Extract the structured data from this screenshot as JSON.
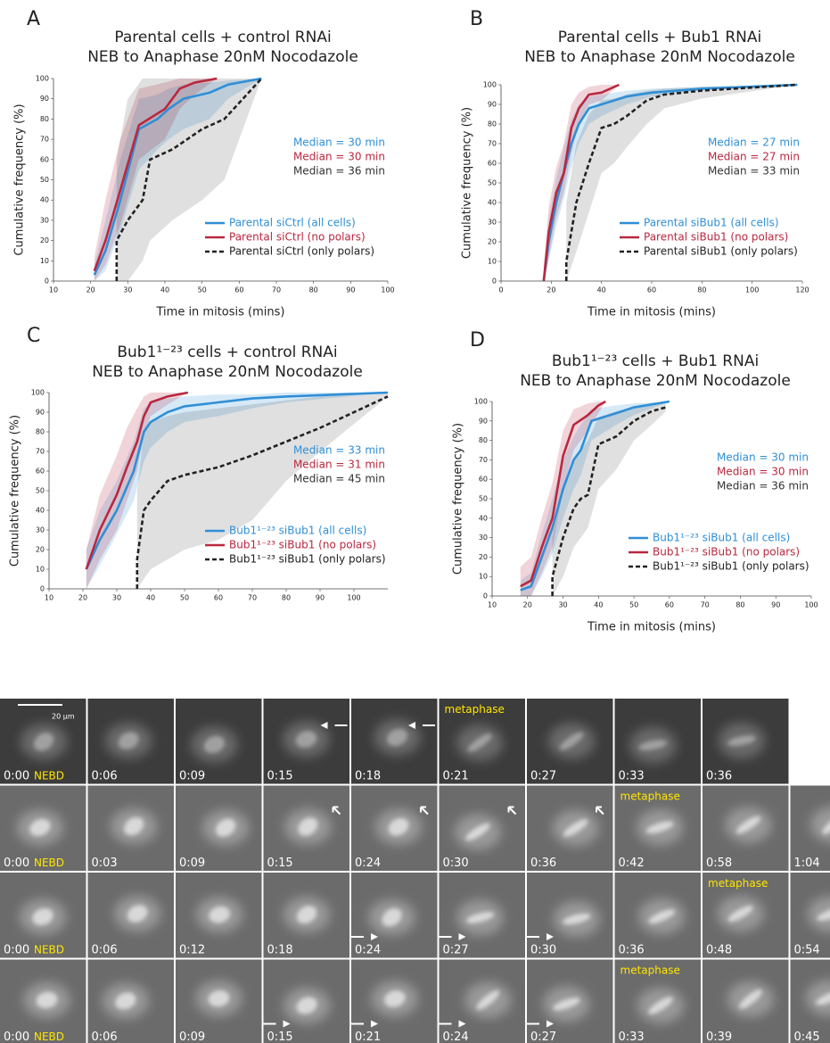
{
  "chart_data": [
    {
      "type": "line",
      "panel_label": "A",
      "title": "Parental cells + control RNAi",
      "subtitle": "NEB to Anaphase 20nM Nocodazole",
      "x_label": "Time in mitosis (mins)",
      "y_label": "Cumulative frequency (%)",
      "xlim": [
        10,
        100
      ],
      "xticks": [
        10,
        20,
        30,
        40,
        50,
        60,
        70,
        80,
        90,
        100
      ],
      "ylim": [
        0,
        100
      ],
      "yticks": [
        0,
        10,
        20,
        30,
        40,
        50,
        60,
        70,
        80,
        90,
        100
      ],
      "legend": "lower right",
      "annotations": [
        {
          "text": "Median = 30 min",
          "color": "#2f8fd6"
        },
        {
          "text": "Median = 30 min",
          "color": "#b8283f"
        },
        {
          "text": "Median = 36 min",
          "color": "#333333"
        }
      ],
      "series": [
        {
          "name": "Parental siCtrl (all cells)",
          "color": "#2f8fd6",
          "dashed": false,
          "x": [
            21,
            24,
            28,
            33,
            38,
            41,
            45,
            52,
            57,
            66
          ],
          "values": [
            3,
            15,
            40,
            75,
            80,
            85,
            90,
            93,
            97,
            100
          ],
          "lower": [
            0,
            5,
            25,
            55,
            65,
            70,
            75,
            80,
            90,
            100
          ],
          "upper": [
            8,
            30,
            60,
            90,
            92,
            95,
            97,
            98,
            99,
            100
          ]
        },
        {
          "name": "Parental siCtrl (no polars)",
          "color": "#b8283f",
          "dashed": false,
          "x": [
            21,
            24,
            28,
            33,
            40,
            44,
            48,
            54
          ],
          "values": [
            5,
            20,
            45,
            77,
            85,
            95,
            98,
            100
          ],
          "lower": [
            0,
            8,
            28,
            60,
            70,
            85,
            92,
            100
          ],
          "upper": [
            12,
            40,
            70,
            95,
            98,
            100,
            100,
            100
          ]
        },
        {
          "name": "Parental siCtrl (only polars)",
          "color": "#222222",
          "dashed": true,
          "x": [
            27,
            27,
            30,
            34,
            36,
            42,
            50,
            56,
            66
          ],
          "values": [
            0,
            20,
            30,
            40,
            60,
            65,
            75,
            80,
            100
          ],
          "lower": [
            0,
            0,
            0,
            10,
            20,
            30,
            40,
            50,
            100
          ],
          "upper": [
            0,
            60,
            90,
            100,
            100,
            100,
            100,
            100,
            100
          ]
        }
      ]
    },
    {
      "type": "line",
      "panel_label": "B",
      "title": "Parental cells + Bub1 RNAi",
      "subtitle": "NEB to Anaphase 20nM Nocodazole",
      "x_label": "Time in mitosis (mins)",
      "y_label": "Cumulative frequency (%)",
      "xlim": [
        0,
        120
      ],
      "xticks": [
        0,
        20,
        40,
        60,
        80,
        100,
        120
      ],
      "ylim": [
        0,
        100
      ],
      "yticks": [
        0,
        10,
        20,
        30,
        40,
        50,
        60,
        70,
        80,
        90,
        100
      ],
      "legend": "lower right",
      "annotations": [
        {
          "text": "Median = 27 min",
          "color": "#2f8fd6"
        },
        {
          "text": "Median = 27 min",
          "color": "#b8283f"
        },
        {
          "text": "Median = 33 min",
          "color": "#333333"
        }
      ],
      "series": [
        {
          "name": "Parental siBub1 (all cells)",
          "color": "#2f8fd6",
          "dashed": false,
          "x": [
            17,
            19,
            22,
            25,
            28,
            31,
            35,
            40,
            50,
            60,
            80,
            118
          ],
          "values": [
            0,
            20,
            40,
            55,
            70,
            80,
            88,
            90,
            94,
            96,
            98,
            100
          ],
          "lower": [
            0,
            10,
            28,
            42,
            58,
            70,
            80,
            84,
            90,
            94,
            97,
            100
          ],
          "upper": [
            5,
            32,
            52,
            68,
            82,
            90,
            94,
            95,
            97,
            98,
            99,
            100
          ]
        },
        {
          "name": "Parental siBub1 (no polars)",
          "color": "#b8283f",
          "dashed": false,
          "x": [
            17,
            19,
            22,
            25,
            28,
            31,
            35,
            40,
            47
          ],
          "values": [
            0,
            25,
            45,
            55,
            78,
            88,
            95,
            96,
            100
          ],
          "lower": [
            0,
            12,
            32,
            45,
            65,
            80,
            90,
            92,
            100
          ],
          "upper": [
            8,
            38,
            58,
            70,
            90,
            96,
            99,
            100,
            100
          ]
        },
        {
          "name": "Parental siBub1 (only polars)",
          "color": "#222222",
          "dashed": true,
          "x": [
            26,
            26,
            30,
            35,
            40,
            45,
            50,
            58,
            65,
            80,
            118
          ],
          "values": [
            0,
            10,
            40,
            60,
            78,
            80,
            84,
            92,
            95,
            97,
            100
          ],
          "lower": [
            0,
            0,
            15,
            35,
            55,
            60,
            68,
            80,
            88,
            93,
            100
          ],
          "upper": [
            0,
            40,
            70,
            85,
            92,
            93,
            95,
            97,
            98,
            99,
            100
          ]
        }
      ]
    },
    {
      "type": "line",
      "panel_label": "C",
      "title": "Bub1¹⁻²³ cells + control RNAi",
      "subtitle": "NEB to Anaphase 20nM Nocodazole",
      "y_label": "Cumulative frequency (%)",
      "xlim": [
        10,
        110
      ],
      "xticks": [
        10,
        20,
        30,
        40,
        50,
        60,
        70,
        80,
        90,
        100
      ],
      "ylim": [
        0,
        100
      ],
      "yticks": [
        0,
        10,
        20,
        30,
        40,
        50,
        60,
        70,
        80,
        90,
        100
      ],
      "legend": "lower right",
      "annotations": [
        {
          "text": "Median = 33 min",
          "color": "#2f8fd6"
        },
        {
          "text": "Median = 31 min",
          "color": "#b8283f"
        },
        {
          "text": "Median = 45 min",
          "color": "#333333"
        }
      ],
      "series": [
        {
          "name": "Bub1¹⁻²³ siBub1 (all cells)",
          "color": "#2f8fd6",
          "dashed": false,
          "x": [
            21,
            25,
            30,
            35,
            38,
            40,
            45,
            50,
            60,
            70,
            80,
            110
          ],
          "values": [
            10,
            25,
            40,
            60,
            80,
            85,
            90,
            93,
            95,
            97,
            98,
            100
          ],
          "lower": [
            0,
            12,
            28,
            45,
            65,
            72,
            80,
            85,
            88,
            92,
            95,
            100
          ],
          "upper": [
            20,
            40,
            55,
            75,
            92,
            95,
            97,
            98,
            99,
            99,
            100,
            100
          ]
        },
        {
          "name": "Bub1¹⁻²³ siBub1 (no polars)",
          "color": "#b8283f",
          "dashed": false,
          "x": [
            21,
            25,
            30,
            33,
            36,
            38,
            40,
            45,
            51
          ],
          "values": [
            10,
            30,
            48,
            62,
            75,
            88,
            95,
            98,
            100
          ],
          "lower": [
            0,
            15,
            30,
            45,
            60,
            78,
            88,
            94,
            100
          ],
          "upper": [
            20,
            48,
            68,
            82,
            92,
            98,
            100,
            100,
            100
          ]
        },
        {
          "name": "Bub1¹⁻²³ siBub1 (only polars)",
          "color": "#222222",
          "dashed": true,
          "x": [
            36,
            36,
            38,
            40,
            45,
            50,
            60,
            70,
            80,
            90,
            110
          ],
          "values": [
            0,
            15,
            40,
            45,
            55,
            58,
            62,
            68,
            75,
            82,
            98
          ],
          "lower": [
            0,
            0,
            5,
            10,
            15,
            20,
            25,
            35,
            55,
            70,
            98
          ],
          "upper": [
            0,
            50,
            80,
            85,
            88,
            90,
            92,
            94,
            96,
            98,
            100
          ]
        }
      ]
    },
    {
      "type": "line",
      "panel_label": "D",
      "title": "Bub1¹⁻²³ cells + Bub1 RNAi",
      "subtitle": "NEB to Anaphase 20nM Nocodazole",
      "x_label": "Time in mitosis (mins)",
      "y_label": "Cumulative frequency (%)",
      "xlim": [
        10,
        100
      ],
      "xticks": [
        10,
        20,
        30,
        40,
        50,
        60,
        70,
        80,
        90,
        100
      ],
      "ylim": [
        0,
        100
      ],
      "yticks": [
        0,
        10,
        20,
        30,
        40,
        50,
        60,
        70,
        80,
        90,
        100
      ],
      "legend": "lower right",
      "annotations": [
        {
          "text": "Median = 30 min",
          "color": "#2f8fd6"
        },
        {
          "text": "Median = 30 min",
          "color": "#b8283f"
        },
        {
          "text": "Median = 36 min",
          "color": "#333333"
        }
      ],
      "series": [
        {
          "name": "Bub1¹⁻²³ siBub1 (all cells)",
          "color": "#2f8fd6",
          "dashed": false,
          "x": [
            18,
            21,
            24,
            27,
            30,
            33,
            35,
            38,
            45,
            50,
            60
          ],
          "values": [
            3,
            5,
            20,
            35,
            55,
            70,
            75,
            90,
            94,
            97,
            100
          ],
          "lower": [
            0,
            0,
            10,
            22,
            40,
            55,
            62,
            80,
            88,
            93,
            100
          ],
          "upper": [
            8,
            12,
            32,
            50,
            70,
            82,
            88,
            96,
            98,
            99,
            100
          ]
        },
        {
          "name": "Bub1¹⁻²³ siBub1 (no polars)",
          "color": "#b8283f",
          "dashed": false,
          "x": [
            18,
            21,
            24,
            27,
            30,
            33,
            37,
            40,
            42
          ],
          "values": [
            5,
            8,
            25,
            40,
            72,
            88,
            93,
            98,
            100
          ],
          "lower": [
            0,
            0,
            12,
            25,
            55,
            75,
            85,
            94,
            100
          ],
          "upper": [
            15,
            20,
            40,
            58,
            85,
            96,
            99,
            100,
            100
          ]
        },
        {
          "name": "Bub1¹⁻²³ siBub1 (only polars)",
          "color": "#222222",
          "dashed": true,
          "x": [
            27,
            27,
            30,
            33,
            35,
            37,
            40,
            45,
            50,
            55,
            59
          ],
          "values": [
            0,
            10,
            30,
            45,
            50,
            52,
            78,
            82,
            90,
            95,
            97
          ],
          "lower": [
            0,
            0,
            10,
            25,
            30,
            35,
            55,
            65,
            80,
            88,
            95
          ],
          "upper": [
            0,
            30,
            55,
            70,
            75,
            80,
            92,
            95,
            97,
            98,
            100
          ]
        }
      ]
    }
  ],
  "micrographs": {
    "scale_bar": "20 µm",
    "rows": [
      {
        "frames": [
          {
            "time": "0:00",
            "tag": "NEBD"
          },
          {
            "time": "0:06"
          },
          {
            "time": "0:09"
          },
          {
            "time": "0:15"
          },
          {
            "time": "0:18"
          },
          {
            "time": "0:21",
            "tag": "metaphase"
          },
          {
            "time": "0:27"
          },
          {
            "time": "0:33"
          },
          {
            "time": "0:36"
          }
        ]
      },
      {
        "frames": [
          {
            "time": "0:00",
            "tag": "NEBD"
          },
          {
            "time": "0:03"
          },
          {
            "time": "0:09"
          },
          {
            "time": "0:15"
          },
          {
            "time": "0:24"
          },
          {
            "time": "0:30"
          },
          {
            "time": "0:36"
          },
          {
            "time": "0:42",
            "tag": "metaphase"
          },
          {
            "time": "0:58"
          },
          {
            "time": "1:04"
          }
        ]
      },
      {
        "frames": [
          {
            "time": "0:00",
            "tag": "NEBD"
          },
          {
            "time": "0:06"
          },
          {
            "time": "0:12"
          },
          {
            "time": "0:18"
          },
          {
            "time": "0:24"
          },
          {
            "time": "0:27"
          },
          {
            "time": "0:30"
          },
          {
            "time": "0:36"
          },
          {
            "time": "0:48",
            "tag": "metaphase"
          },
          {
            "time": "0:54"
          }
        ]
      },
      {
        "frames": [
          {
            "time": "0:00",
            "tag": "NEBD"
          },
          {
            "time": "0:06"
          },
          {
            "time": "0:09"
          },
          {
            "time": "0:15"
          },
          {
            "time": "0:21"
          },
          {
            "time": "0:24"
          },
          {
            "time": "0:27"
          },
          {
            "time": "0:33",
            "tag": "metaphase"
          },
          {
            "time": "0:39"
          },
          {
            "time": "0:45"
          }
        ]
      }
    ]
  }
}
